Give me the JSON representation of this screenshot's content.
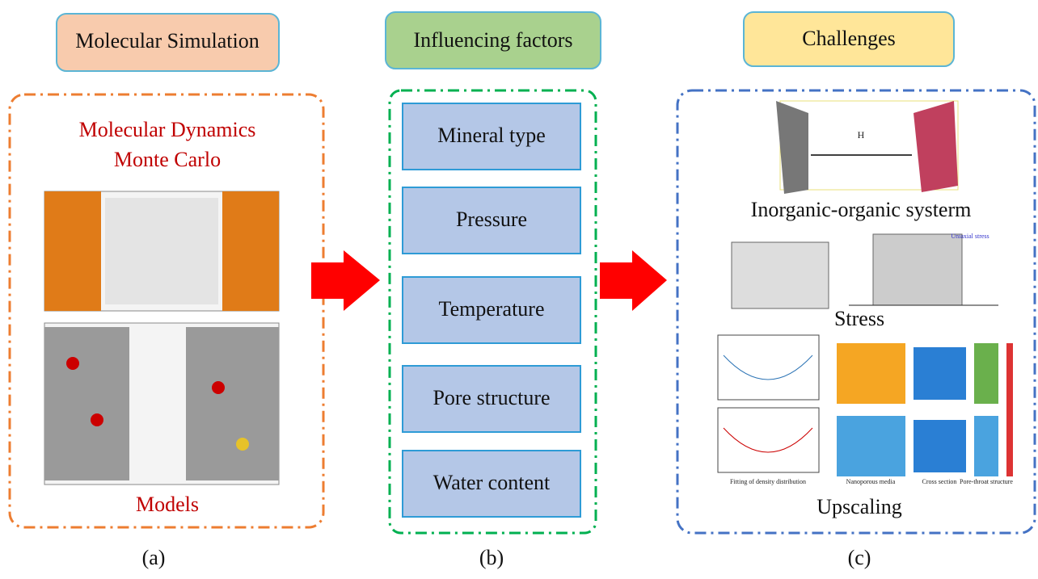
{
  "panels": [
    {
      "header": "Molecular Simulation",
      "lines": [
        "Molecular Dynamics",
        "Monte Carlo"
      ],
      "footer": "Models",
      "caption": "(a)"
    },
    {
      "header": "Influencing factors",
      "items": [
        "Mineral type",
        "Pressure",
        "Temperature",
        "Pore structure",
        "Water content"
      ],
      "caption": "(b)"
    },
    {
      "header": "Challenges",
      "figures": [
        {
          "label": "Inorganic-organic systerm",
          "inner": [
            "H"
          ]
        },
        {
          "label": "Stress",
          "inner": [
            "Uniaxial stress"
          ]
        },
        {
          "label": "Upscaling",
          "inner": [
            "Fitting of density distribution",
            "Nanoporous media",
            "Cross section",
            "Pore-throat structure"
          ]
        }
      ],
      "caption": "(c)"
    }
  ]
}
